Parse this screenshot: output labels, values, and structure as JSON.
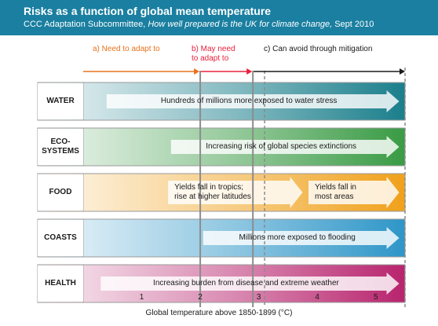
{
  "header": {
    "title": "Risks as a function of global mean temperature",
    "subtitle_prefix": "CCC Adaptation Subcommittee, ",
    "subtitle_italic": "How well prepared is the UK for climate change,",
    "subtitle_suffix": " Sept 2010"
  },
  "phases": {
    "a": "a) Need to adapt to",
    "b_line1": "b) May need",
    "b_line2": "to adapt to",
    "c": "c) Can avoid through mitigation"
  },
  "rows": [
    {
      "label_line1": "WATER",
      "label_line2": "",
      "color": "#1b7f8c",
      "arrows": [
        {
          "text": "Hundreds of millions more exposed to water stress",
          "from": 0.4,
          "to": 5.4
        }
      ]
    },
    {
      "label_line1": "ECO-",
      "label_line2": "SYSTEMS",
      "color": "#3a9b45",
      "arrows": [
        {
          "text": "Increasing risk of global species extinctions",
          "from": 1.5,
          "to": 5.4
        }
      ]
    },
    {
      "label_line1": "FOOD",
      "label_line2": "",
      "color": "#f0a11b",
      "arrows": [
        {
          "text": "Yields fall in tropics;",
          "text2": "rise at higher latitudes",
          "from": 1.45,
          "to": 3.75
        },
        {
          "text": "Yields fall in",
          "text2": "most areas",
          "from": 3.85,
          "to": 5.4
        }
      ]
    },
    {
      "label_line1": "COASTS",
      "label_line2": "",
      "color": "#2e96c8",
      "arrows": [
        {
          "text": "Millions more exposed to flooding",
          "from": 2.05,
          "to": 5.4
        }
      ]
    },
    {
      "label_line1": "HEALTH",
      "label_line2": "",
      "color": "#b8246e",
      "arrows": [
        {
          "text": "Increasing burden from disease and extreme weather",
          "from": 0.3,
          "to": 5.4
        }
      ]
    }
  ],
  "chart_data": {
    "type": "diagram",
    "xlabel": "Global temperature above 1850-1899 (°C)",
    "xticks": [
      1,
      2,
      3,
      4,
      5
    ],
    "xlim": [
      0,
      5.5
    ],
    "thresholds": {
      "need_to_adapt_end": 2.0,
      "may_need_end": 2.9,
      "avoid_start": 3.1
    },
    "colors": {
      "phase_a": "#e8721d",
      "phase_b": "#e8203c",
      "phase_c": "#1a1a1a",
      "header": "#1a7fa0"
    }
  }
}
